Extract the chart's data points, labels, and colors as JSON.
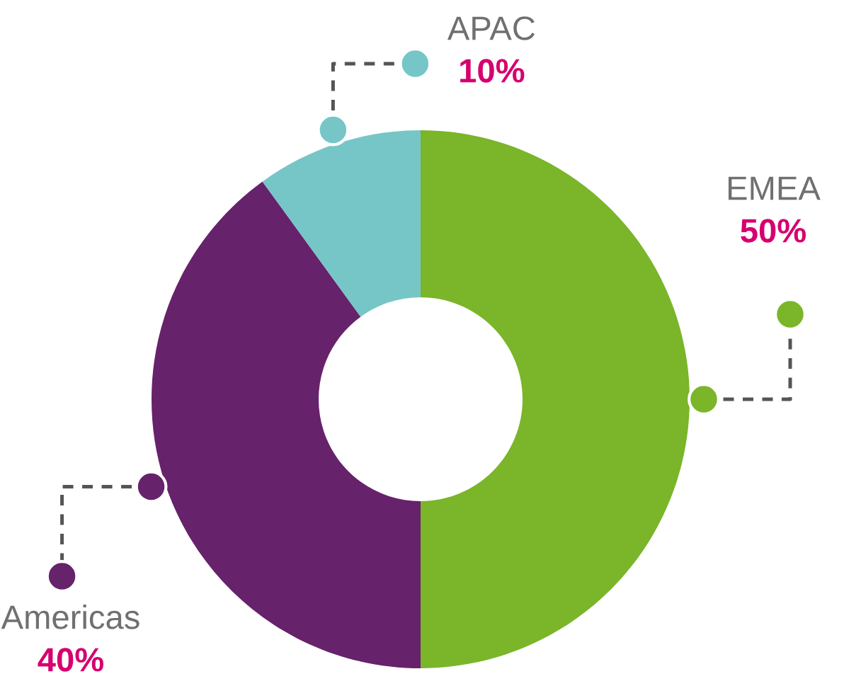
{
  "chart_data": {
    "type": "donut",
    "categories": [
      "EMEA",
      "Americas",
      "APAC"
    ],
    "values": [
      50,
      40,
      10
    ],
    "colors": [
      "#7ab52a",
      "#66226a",
      "#76c6c8"
    ],
    "value_labels": [
      "50%",
      "40%",
      "10%"
    ]
  }
}
